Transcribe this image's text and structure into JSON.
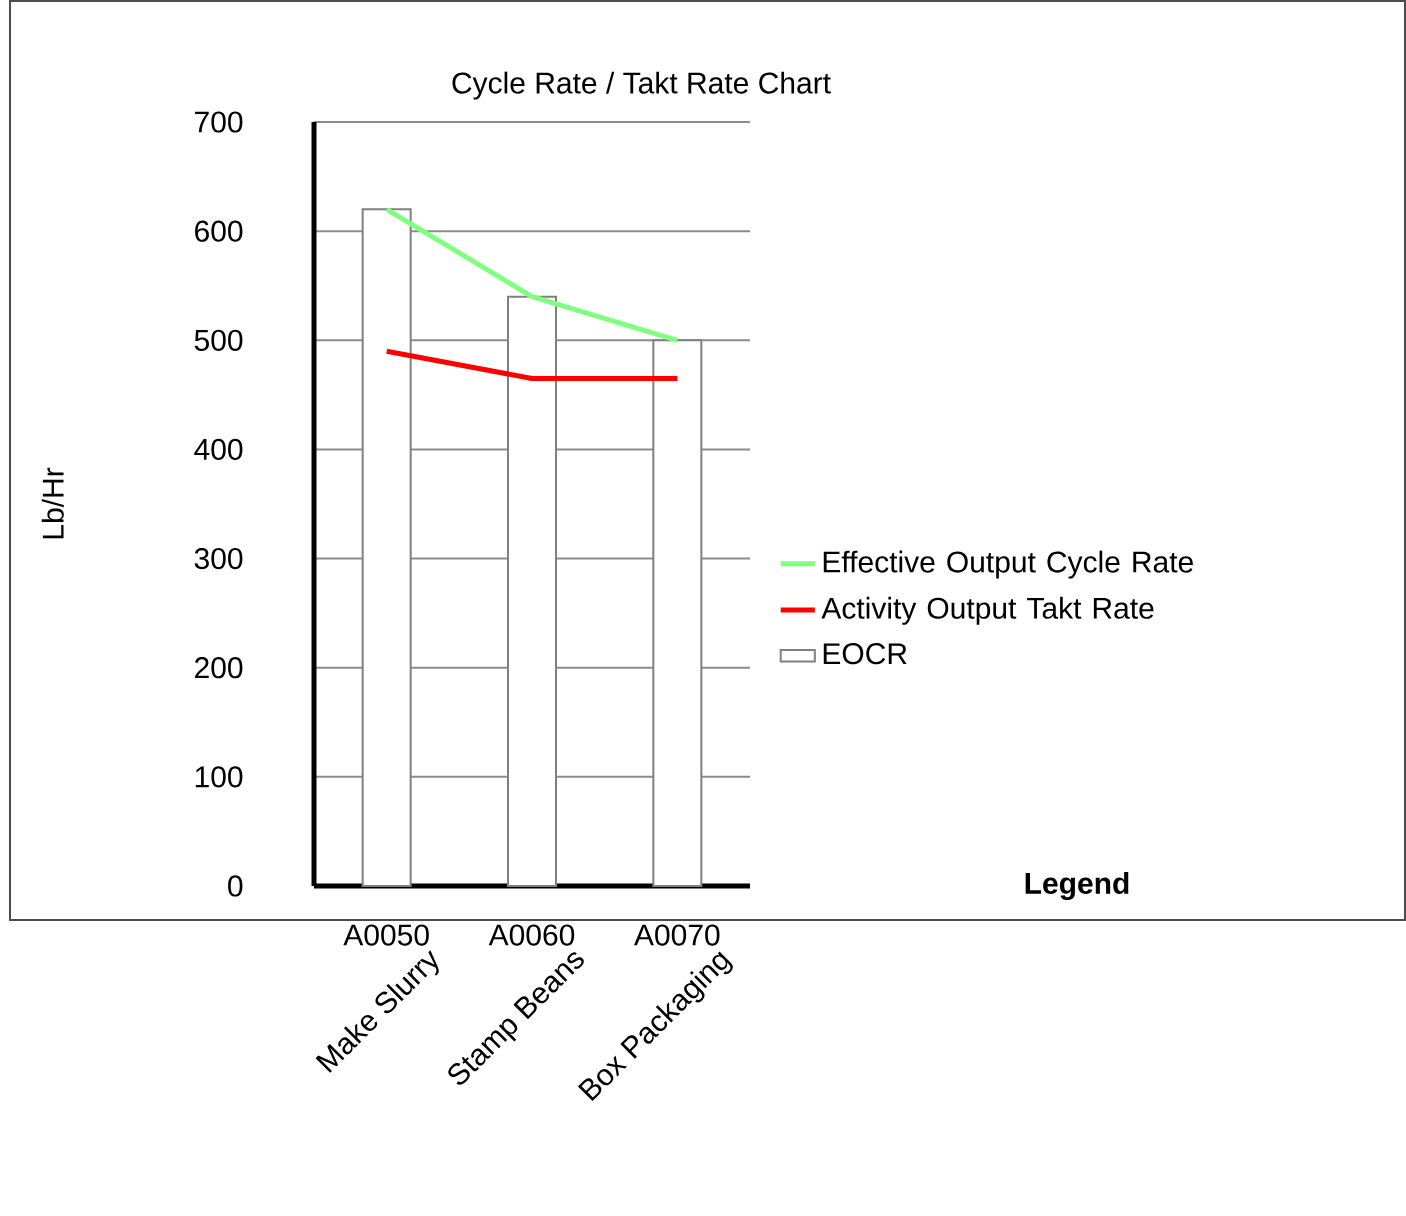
{
  "chart_data": {
    "type": "bar",
    "title": "Cycle Rate / Takt Rate Chart",
    "ylabel": "Lb/Hr",
    "categories": [
      "A0050",
      "A0060",
      "A0070"
    ],
    "series": [
      {
        "name": "Effective Output Cycle Rate",
        "type": "line",
        "color": "#80ff80",
        "values": [
          620,
          540,
          500
        ]
      },
      {
        "name": "Activity Output Takt Rate",
        "type": "line",
        "color": "#ff0000",
        "values": [
          490,
          465,
          465
        ]
      },
      {
        "name": "EOCR",
        "color": "#ffffff",
        "values": [
          620,
          540,
          500
        ]
      }
    ],
    "legend_title": "Legend",
    "legend": "right",
    "grid": "y",
    "ylim": [
      0,
      700
    ],
    "yticks": [
      0,
      100,
      200,
      300,
      400,
      500,
      600,
      700
    ],
    "annotations": [
      "Make Slurry",
      "Stamp Beans",
      "Box Packaging"
    ]
  }
}
